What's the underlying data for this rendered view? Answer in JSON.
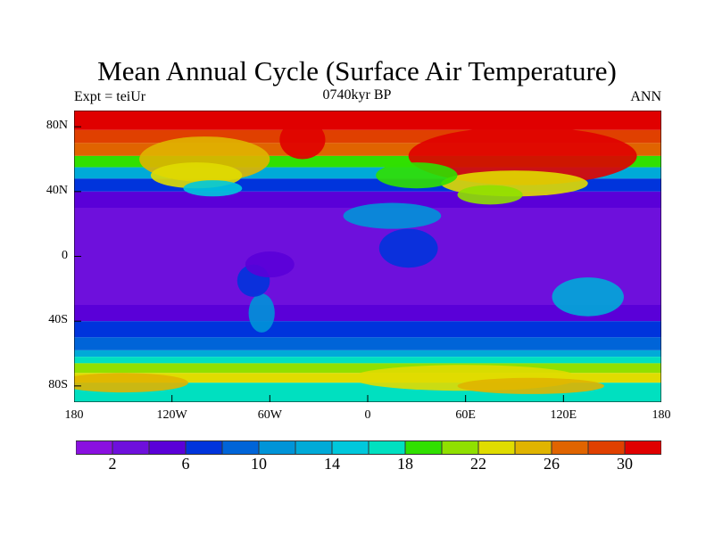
{
  "title": "Mean Annual Cycle (Surface Air Temperature)",
  "left_label": "Expt = teiUr",
  "center_label": "0740kyr BP",
  "right_label": "ANN",
  "chart_data": {
    "type": "heatmap",
    "projection": "cylindrical equidistant",
    "title": "Mean Annual Cycle (Surface Air Temperature)",
    "xlim": [
      -180,
      180
    ],
    "ylim": [
      -90,
      90
    ],
    "x_ticks": [
      -180,
      -120,
      -60,
      0,
      60,
      120,
      180
    ],
    "x_tick_labels": [
      "180",
      "120W",
      "60W",
      "0",
      "60E",
      "120E",
      "180"
    ],
    "y_ticks": [
      80,
      40,
      0,
      -40,
      -80
    ],
    "y_tick_labels": [
      "80N",
      "40N",
      "0",
      "40S",
      "80S"
    ],
    "colorbar": {
      "levels": [
        2,
        4,
        6,
        8,
        10,
        12,
        14,
        16,
        18,
        20,
        22,
        24,
        26,
        28,
        30
      ],
      "labels": [
        "2",
        "6",
        "10",
        "14",
        "18",
        "22",
        "26",
        "30"
      ],
      "label_values": [
        2,
        6,
        10,
        14,
        18,
        22,
        26,
        30
      ],
      "colors": [
        "#8a10e0",
        "#6e10dc",
        "#5a00d8",
        "#0034dc",
        "#0064d8",
        "#0094d8",
        "#00aad8",
        "#00c8dc",
        "#00e0c0",
        "#30e000",
        "#90e000",
        "#e0dc00",
        "#e0b400",
        "#e06400",
        "#e04000",
        "#e00000"
      ]
    }
  }
}
